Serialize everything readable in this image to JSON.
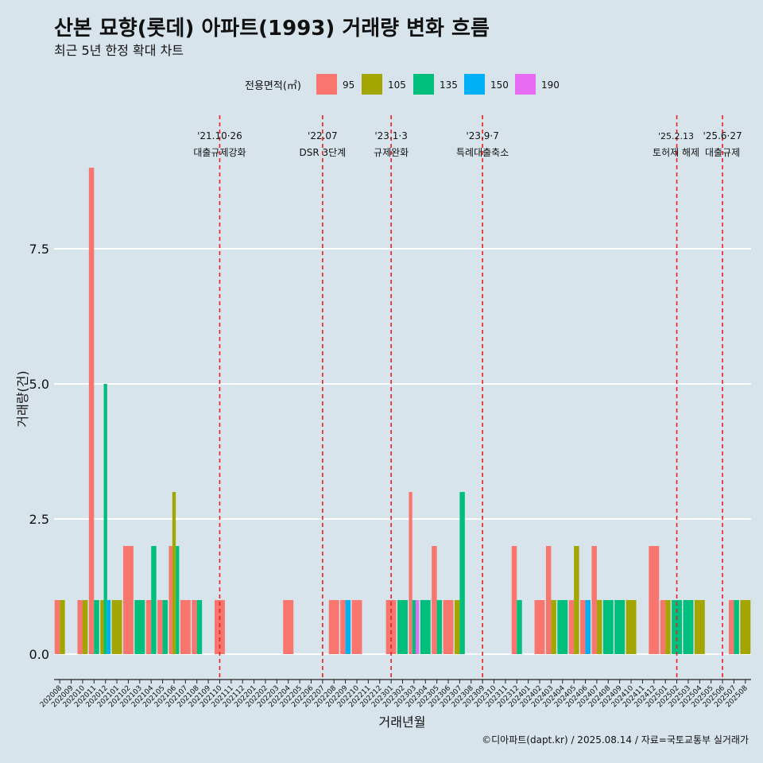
{
  "chart_data": {
    "type": "bar",
    "title": "산본 묘향(롯데) 아파트(1993) 거래량 변화 흐름",
    "subtitle": "최근 5년 한정 확대 차트",
    "xlabel": "거래년월",
    "ylabel": "거래량(건)",
    "caption": "©디아파트(dapt.kr) / 2025.08.14 / 자료=국토교통부 실거래가",
    "ylim": [
      -0.45,
      9.55
    ],
    "yticks": [
      0,
      2.5,
      5,
      7.5
    ],
    "ytick_labels": [
      "0.0",
      "2.5",
      "5.0",
      "7.5"
    ],
    "grid": true,
    "legend": {
      "title": "전용면적(㎡)",
      "position": "top",
      "entries": [
        {
          "name": "95",
          "color": "#f8766d"
        },
        {
          "name": "105",
          "color": "#a3a500"
        },
        {
          "name": "135",
          "color": "#00bf7d"
        },
        {
          "name": "150",
          "color": "#00b0f6"
        },
        {
          "name": "190",
          "color": "#e76bf3"
        }
      ]
    },
    "categories": [
      "202008",
      "202009",
      "202010",
      "202011",
      "202012",
      "202101",
      "202102",
      "202103",
      "202104",
      "202105",
      "202106",
      "202107",
      "202108",
      "202109",
      "202110",
      "202111",
      "202112",
      "202201",
      "202202",
      "202203",
      "202204",
      "202205",
      "202206",
      "202207",
      "202208",
      "202209",
      "202210",
      "202211",
      "202212",
      "202301",
      "202302",
      "202303",
      "202304",
      "202305",
      "202306",
      "202307",
      "202308",
      "202309",
      "202310",
      "202311",
      "202312",
      "202401",
      "202402",
      "202403",
      "202404",
      "202405",
      "202406",
      "202407",
      "202408",
      "202409",
      "202410",
      "202411",
      "202412",
      "202501",
      "202502",
      "202503",
      "202504",
      "202505",
      "202506",
      "202507",
      "202508"
    ],
    "series": [
      {
        "name": "95",
        "values": [
          1,
          0,
          1,
          9,
          0,
          0,
          2,
          0,
          1,
          1,
          2,
          1,
          1,
          0,
          1,
          0,
          0,
          0,
          0,
          0,
          1,
          0,
          0,
          0,
          1,
          1,
          1,
          0,
          0,
          1,
          0,
          3,
          0,
          2,
          1,
          0,
          0,
          0,
          0,
          0,
          2,
          0,
          1,
          2,
          0,
          1,
          1,
          2,
          0,
          0,
          0,
          0,
          2,
          1,
          0,
          0,
          0,
          0,
          0,
          1,
          0
        ]
      },
      {
        "name": "105",
        "values": [
          1,
          0,
          1,
          0,
          1,
          1,
          0,
          0,
          0,
          0,
          3,
          0,
          0,
          0,
          0,
          0,
          0,
          0,
          0,
          0,
          0,
          0,
          0,
          0,
          0,
          0,
          0,
          0,
          0,
          0,
          0,
          0,
          0,
          0,
          0,
          1,
          0,
          0,
          0,
          0,
          0,
          0,
          0,
          1,
          0,
          2,
          0,
          1,
          0,
          0,
          1,
          0,
          0,
          1,
          0,
          0,
          1,
          0,
          0,
          0,
          1
        ]
      },
      {
        "name": "135",
        "values": [
          0,
          0,
          0,
          1,
          5,
          0,
          0,
          1,
          2,
          1,
          2,
          0,
          1,
          0,
          0,
          0,
          0,
          0,
          0,
          0,
          0,
          0,
          0,
          0,
          0,
          0,
          0,
          0,
          0,
          0,
          1,
          1,
          1,
          1,
          0,
          3,
          0,
          0,
          0,
          0,
          1,
          0,
          0,
          0,
          1,
          0,
          0,
          0,
          1,
          1,
          0,
          0,
          0,
          0,
          1,
          1,
          0,
          0,
          0,
          1,
          0
        ]
      },
      {
        "name": "150",
        "values": [
          0,
          0,
          0,
          0,
          1,
          0,
          0,
          0,
          0,
          0,
          0,
          0,
          0,
          0,
          0,
          0,
          0,
          0,
          0,
          0,
          0,
          0,
          0,
          0,
          0,
          1,
          0,
          0,
          0,
          0,
          0,
          0,
          0,
          0,
          0,
          0,
          0,
          0,
          0,
          0,
          0,
          0,
          0,
          0,
          0,
          0,
          1,
          0,
          0,
          0,
          0,
          0,
          0,
          0,
          0,
          0,
          0,
          0,
          0,
          0,
          0
        ]
      },
      {
        "name": "190",
        "values": [
          0,
          0,
          0,
          0,
          0,
          0,
          0,
          0,
          0,
          0,
          0,
          0,
          0,
          0,
          0,
          0,
          0,
          0,
          0,
          0,
          0,
          0,
          0,
          0,
          0,
          0,
          0,
          0,
          0,
          0,
          0,
          1,
          0,
          0,
          0,
          0,
          0,
          0,
          0,
          0,
          0,
          0,
          0,
          0,
          0,
          0,
          0,
          0,
          0,
          0,
          0,
          0,
          0,
          0,
          0,
          0,
          0,
          0,
          0,
          0,
          0
        ]
      }
    ],
    "annotations": [
      {
        "at": "202110",
        "date": "'21.10·26",
        "text": "대출규제강화"
      },
      {
        "at": "202207",
        "date": "'22.07",
        "text": "DSR 3단계"
      },
      {
        "at": "202301",
        "date": "'23.1·3",
        "text": "규제완화"
      },
      {
        "at": "202309",
        "date": "'23.9·7",
        "text": "특례대출축소"
      },
      {
        "at": "202502",
        "date": "'25.2.13",
        "text": "토허제 해제"
      },
      {
        "at": "202506",
        "date": "'25.6·27",
        "text": "대출규제"
      }
    ]
  }
}
